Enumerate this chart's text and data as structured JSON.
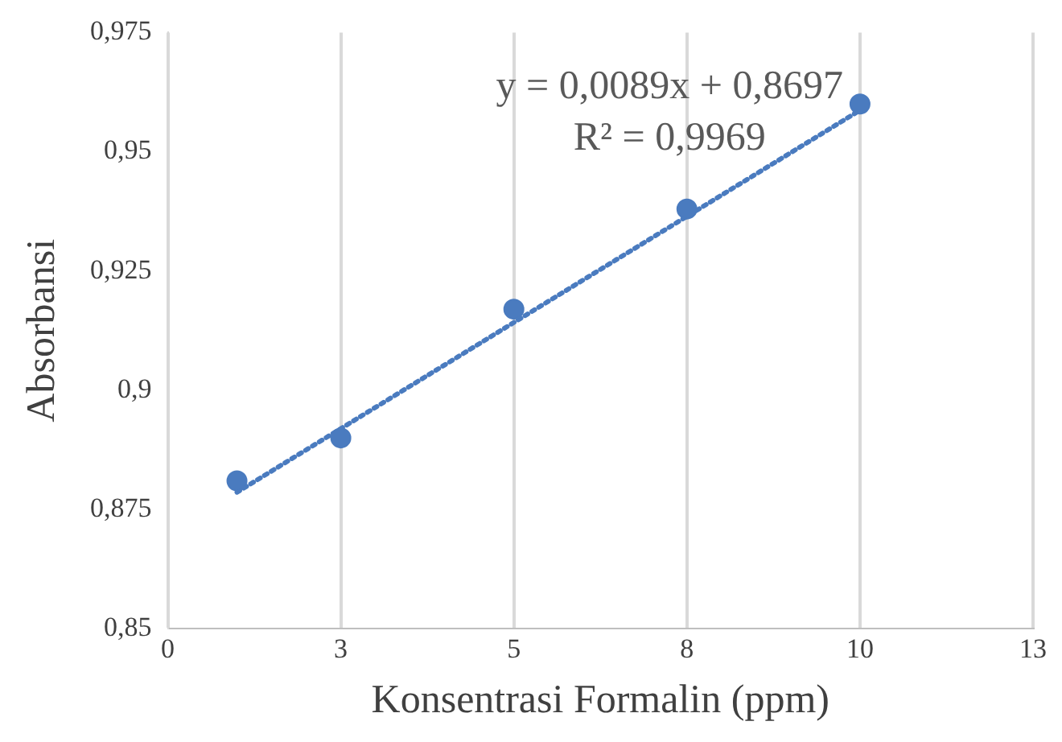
{
  "chart_data": {
    "type": "scatter",
    "xlabel": "Konsentrasi Formalin (ppm)",
    "ylabel": "Absorbansi",
    "annotations": [
      "y = 0,0089x + 0,8697",
      "R² = 0,9969"
    ],
    "x": [
      1,
      2.5,
      5,
      7.5,
      10
    ],
    "series": [
      {
        "type": "scatter",
        "color": "#4a7bbf",
        "values": [
          0.881,
          0.89,
          0.917,
          0.938,
          0.96
        ]
      },
      {
        "type": "line",
        "color": "#4a7bbf",
        "x": [
          1,
          10
        ],
        "values": [
          0.8786,
          0.9587
        ],
        "line_style": "dotted",
        "marker": "none"
      }
    ],
    "xlim": [
      0,
      12.5
    ],
    "xticks": [
      {
        "value": 0,
        "label": "0"
      },
      {
        "value": 2.5,
        "label": "3"
      },
      {
        "value": 5,
        "label": "5"
      },
      {
        "value": 7.5,
        "label": "8"
      },
      {
        "value": 10,
        "label": "10"
      },
      {
        "value": 12.5,
        "label": "13"
      }
    ],
    "ylim": [
      0.85,
      0.975
    ],
    "yticks": [
      {
        "value": 0.85,
        "label": "0,85"
      },
      {
        "value": 0.875,
        "label": "0,875"
      },
      {
        "value": 0.9,
        "label": "0,9"
      },
      {
        "value": 0.925,
        "label": "0,925"
      },
      {
        "value": 0.95,
        "label": "0,95"
      },
      {
        "value": 0.975,
        "label": "0,975"
      }
    ],
    "grid": "x",
    "legend": false,
    "marker": "circle"
  }
}
